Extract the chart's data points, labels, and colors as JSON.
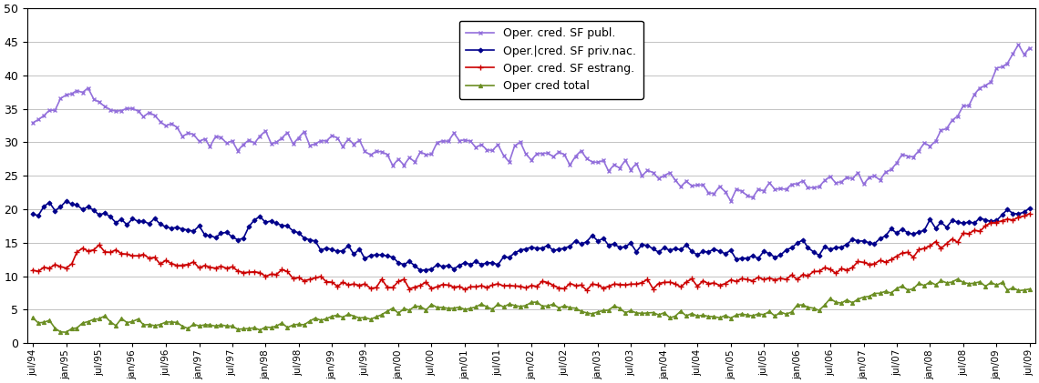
{
  "title": "",
  "xlabel": "",
  "ylabel": "",
  "ylim": [
    0,
    50
  ],
  "yticks": [
    0,
    5,
    10,
    15,
    20,
    25,
    30,
    35,
    40,
    45,
    50
  ],
  "legend_labels": [
    "Oper. cred. SF publ.",
    "Oper.|cred. SF priv.nac.",
    "Oper. cred. SF estrang.",
    "Oper cred total"
  ],
  "colors": [
    "#00008B",
    "#CC0000",
    "#6B8E23",
    "#9370DB"
  ],
  "blue_markers": "D",
  "red_markers": "+",
  "green_markers": "^",
  "purple_markers": "x",
  "background_color": "#FFFFFF",
  "xtick_labels": [
    "jul/94",
    "jan/95",
    "jul/95",
    "jan/96",
    "jul/96",
    "jan/97",
    "jul/97",
    "jan/98",
    "jul/98",
    "jan/99",
    "jul/99",
    "jan/00",
    "jul/00",
    "jan/01",
    "jul/01",
    "jan/02",
    "jul/02",
    "jan/03",
    "jul/03",
    "jan/04",
    "jul/04",
    "jan/05",
    "jul/05",
    "jan/06",
    "jul/06",
    "jan/07",
    "jul/07",
    "jan/08",
    "jul/08",
    "jan/09",
    "jul/09"
  ],
  "blue_data": [
    19.1,
    20.5,
    21.2,
    20.5,
    19.2,
    18.5,
    18.1,
    18.3,
    17.8,
    17.0,
    16.5,
    16.3,
    16.0,
    15.8,
    18.7,
    18.0,
    16.9,
    15.5,
    14.5,
    14.0,
    13.7,
    13.3,
    12.7,
    12.0,
    11.5,
    11.5,
    11.2,
    11.8,
    12.1,
    12.3,
    13.5,
    14.0,
    14.6,
    14.8,
    15.2,
    15.5,
    15.0,
    14.5,
    14.5,
    14.3,
    14.0,
    13.8,
    13.5,
    13.2,
    13.0,
    13.3,
    13.5,
    13.8,
    14.0,
    14.2,
    14.5,
    15.0,
    15.5,
    16.0,
    16.5,
    17.0,
    17.5,
    17.8,
    18.0,
    18.5,
    19.0,
    19.3,
    19.5
  ],
  "red_data": [
    10.8,
    11.0,
    11.5,
    13.5,
    14.2,
    13.8,
    13.2,
    12.7,
    12.5,
    12.0,
    11.8,
    11.5,
    11.0,
    10.8,
    10.5,
    10.2,
    10.0,
    9.8,
    9.5,
    9.2,
    9.0,
    8.8,
    8.8,
    8.5,
    8.5,
    8.5,
    8.5,
    8.5,
    8.5,
    8.5,
    8.5,
    8.5,
    8.5,
    8.5,
    8.5,
    8.5,
    8.7,
    8.8,
    9.0,
    9.0,
    9.0,
    9.0,
    9.0,
    9.0,
    9.0,
    9.2,
    9.5,
    9.8,
    10.0,
    10.5,
    11.0,
    11.5,
    12.0,
    12.5,
    13.0,
    13.8,
    14.5,
    15.2,
    16.0,
    17.0,
    18.0,
    18.7,
    19.2
  ],
  "green_data": [
    3.5,
    3.0,
    1.5,
    2.5,
    3.5,
    3.2,
    3.2,
    3.2,
    3.0,
    3.0,
    2.8,
    2.5,
    2.5,
    2.2,
    2.0,
    2.5,
    3.0,
    3.5,
    3.5,
    3.8,
    4.0,
    4.0,
    4.5,
    5.0,
    5.5,
    5.5,
    5.5,
    5.0,
    5.5,
    5.5,
    5.5,
    5.5,
    5.5,
    5.5,
    5.0,
    5.0,
    5.0,
    4.8,
    4.5,
    4.3,
    4.0,
    4.0,
    4.0,
    4.0,
    4.0,
    4.2,
    4.5,
    5.0,
    5.5,
    5.8,
    6.0,
    6.5,
    7.0,
    7.5,
    8.0,
    8.5,
    8.8,
    9.0,
    9.2,
    9.0,
    8.8,
    8.5,
    8.0
  ],
  "purple_data": [
    33.0,
    34.5,
    36.5,
    37.5,
    36.5,
    35.5,
    35.2,
    34.5,
    33.5,
    32.5,
    31.5,
    30.5,
    30.0,
    30.0,
    30.5,
    30.5,
    30.5,
    30.5,
    30.5,
    30.5,
    30.5,
    30.0,
    28.5,
    28.0,
    27.0,
    28.0,
    29.0,
    30.5,
    30.5,
    29.5,
    29.0,
    28.5,
    28.5,
    28.5,
    28.5,
    27.5,
    27.5,
    27.0,
    26.5,
    26.0,
    25.5,
    25.0,
    24.5,
    24.0,
    23.5,
    23.0,
    22.5,
    22.5,
    22.5,
    23.0,
    23.5,
    23.5,
    24.0,
    24.5,
    25.0,
    25.5,
    26.5,
    28.0,
    29.0,
    31.0,
    33.0,
    36.0,
    39.0,
    41.0,
    43.5,
    45.0
  ]
}
